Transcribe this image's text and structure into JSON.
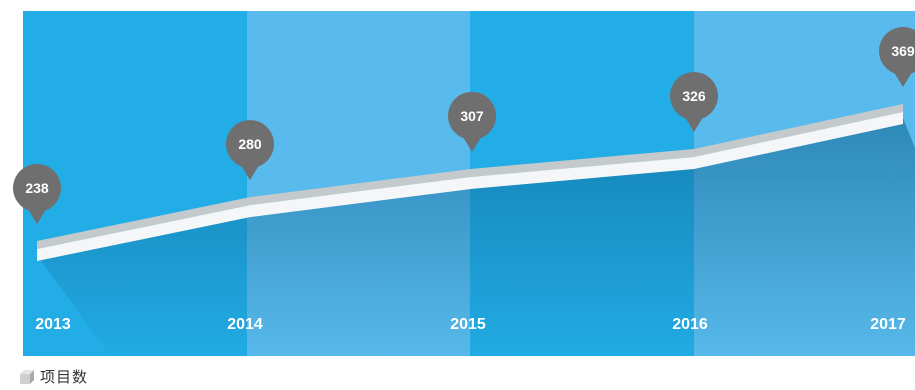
{
  "chart_data": {
    "type": "line",
    "categories": [
      "2013",
      "2014",
      "2015",
      "2016",
      "2017"
    ],
    "values": [
      238,
      280,
      307,
      326,
      369
    ],
    "data_labels": [
      "238",
      "280",
      "307",
      "326",
      "369"
    ],
    "series": [
      {
        "name": "项目数",
        "values": [
          238,
          280,
          307,
          326,
          369
        ]
      }
    ],
    "title": "",
    "xlabel": "",
    "ylabel": "",
    "legend_position": "bottom-left",
    "grid": false
  },
  "legend": {
    "label": "项目数"
  },
  "colors": {
    "band_dark": "#22ade6",
    "band_light": "#59bbed",
    "ribbon_top": "#c4c9cc",
    "ribbon_front": "#f4f6f7",
    "pin": "#6f6f6f",
    "label_text": "#ffffff"
  }
}
